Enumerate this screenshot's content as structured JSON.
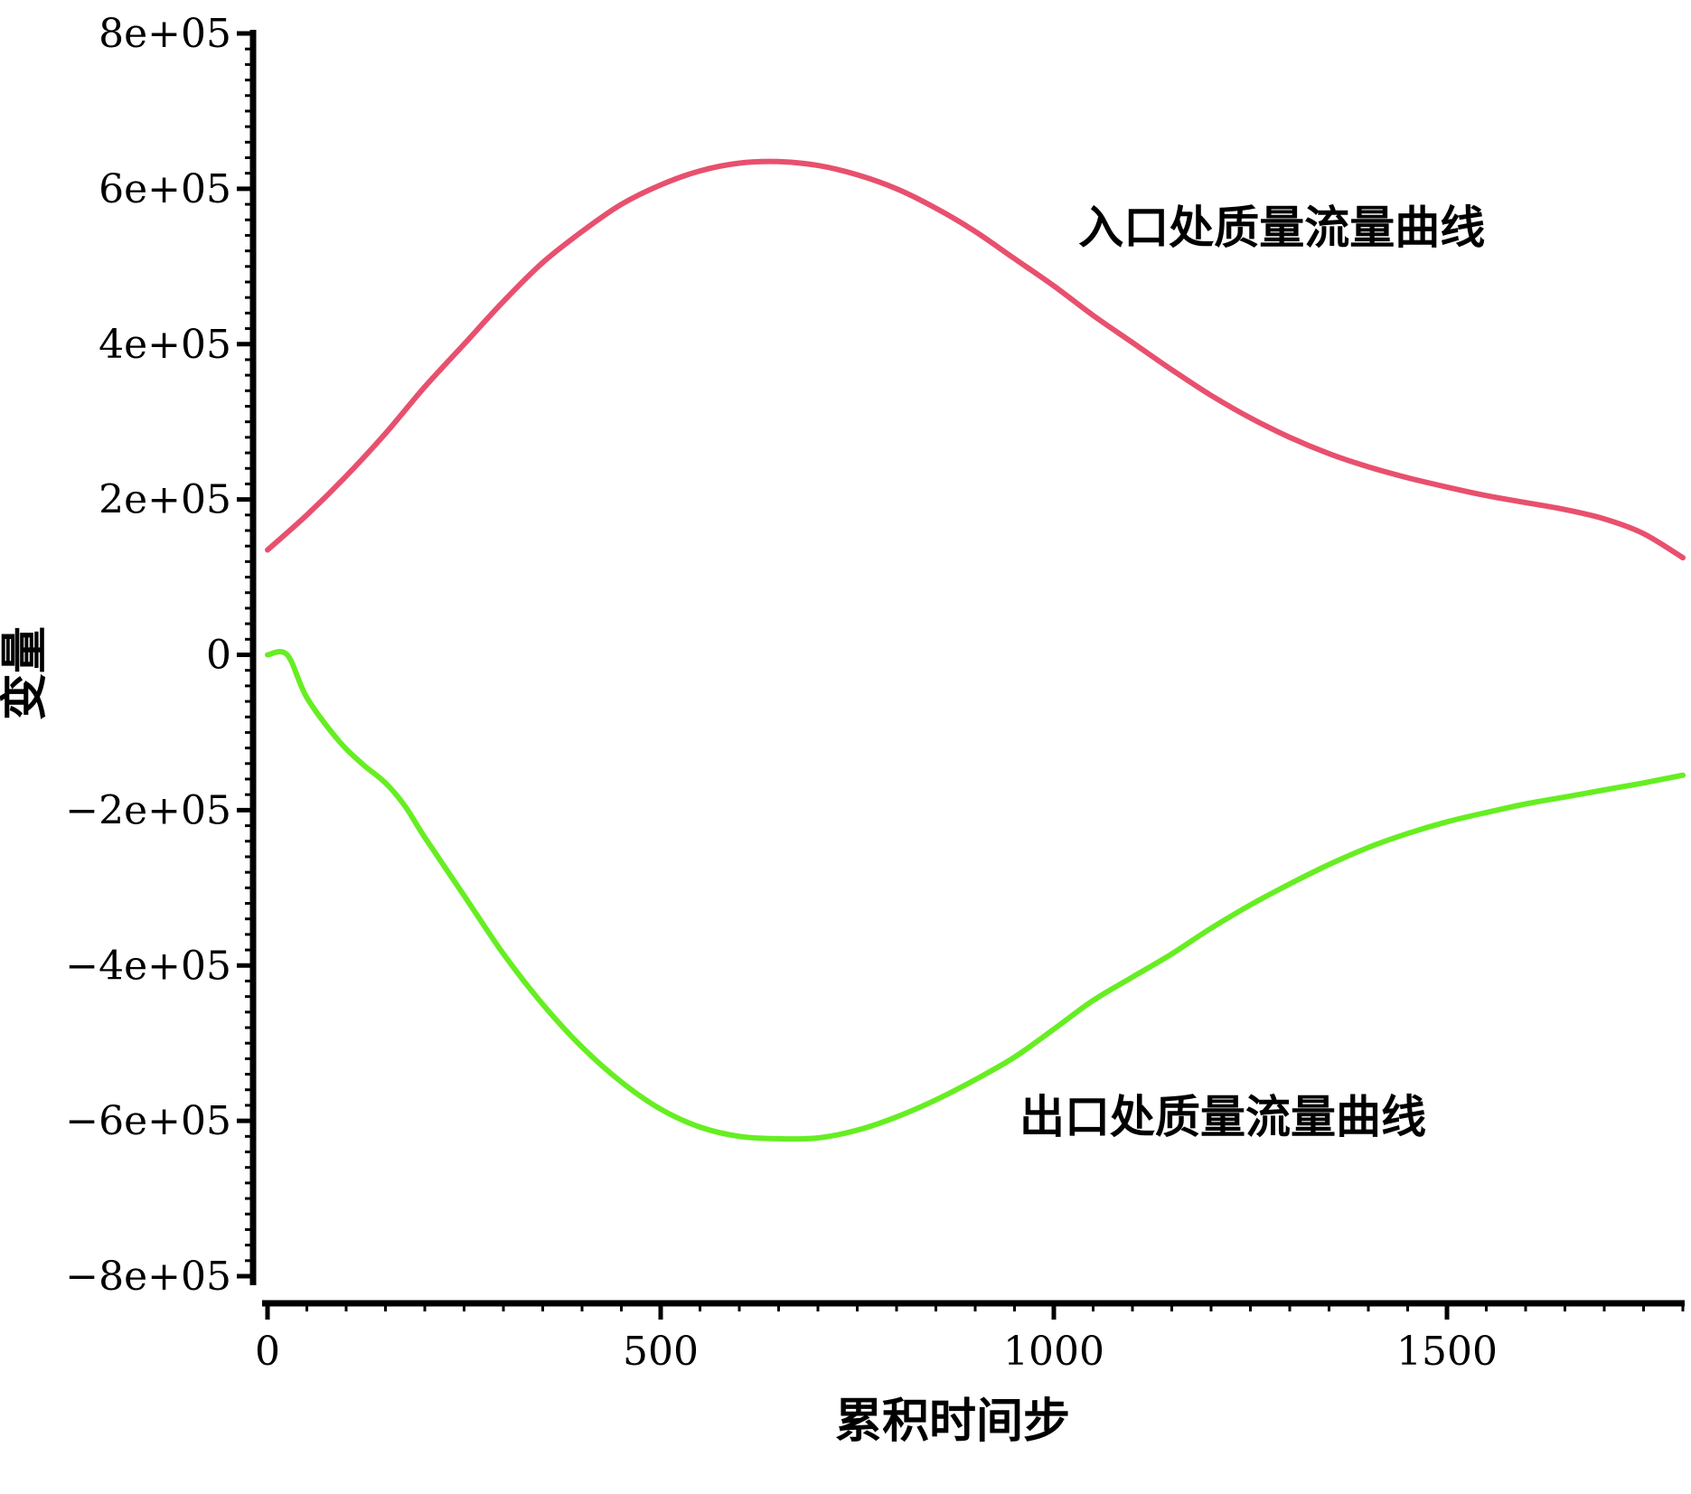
{
  "chart_data": {
    "type": "line",
    "xlabel": "累积时间步",
    "ylabel": "变量",
    "xlim": [
      0,
      1800
    ],
    "ylim": [
      -800000,
      800000
    ],
    "x_ticks": [
      0,
      500,
      1000,
      1500
    ],
    "x_tick_labels": [
      "0",
      "500",
      "1000",
      "1500"
    ],
    "y_ticks": [
      800000,
      600000,
      400000,
      200000,
      0,
      -200000,
      -400000,
      -600000,
      -800000
    ],
    "y_tick_labels": [
      "8e+05",
      "6e+05",
      "4e+05",
      "2e+05",
      "0",
      "−2e+05",
      "−4e+05",
      "−6e+05",
      "−8e+05"
    ],
    "grid": false,
    "series": [
      {
        "name": "入口处质量流量曲线",
        "color": "#e8506e",
        "x": [
          0,
          50,
          100,
          150,
          200,
          250,
          300,
          350,
          400,
          450,
          500,
          550,
          600,
          650,
          700,
          750,
          800,
          850,
          900,
          950,
          1000,
          1050,
          1100,
          1150,
          1200,
          1250,
          1300,
          1350,
          1400,
          1450,
          1500,
          1550,
          1600,
          1650,
          1700,
          1750,
          1800
        ],
        "values": [
          135000,
          180000,
          230000,
          285000,
          345000,
          400000,
          455000,
          505000,
          545000,
          580000,
          605000,
          623000,
          633000,
          635000,
          630000,
          618000,
          600000,
          575000,
          545000,
          510000,
          475000,
          437000,
          402000,
          367000,
          334000,
          305000,
          280000,
          259000,
          242000,
          228000,
          216000,
          205000,
          196000,
          187000,
          175000,
          156000,
          125000
        ],
        "label_x": 1290,
        "label_y": 530000
      },
      {
        "name": "出口处质量流量曲线",
        "color": "#66ee22",
        "x": [
          0,
          25,
          50,
          90,
          120,
          150,
          175,
          200,
          250,
          300,
          350,
          400,
          450,
          500,
          550,
          600,
          650,
          700,
          750,
          800,
          850,
          900,
          950,
          1000,
          1050,
          1100,
          1150,
          1200,
          1250,
          1300,
          1350,
          1400,
          1450,
          1500,
          1550,
          1600,
          1650,
          1700,
          1750,
          1800
        ],
        "values": [
          0,
          0,
          -55000,
          -110000,
          -140000,
          -165000,
          -195000,
          -235000,
          -310000,
          -385000,
          -450000,
          -505000,
          -550000,
          -585000,
          -608000,
          -620000,
          -623000,
          -622000,
          -612000,
          -595000,
          -573000,
          -547000,
          -518000,
          -482000,
          -445000,
          -415000,
          -385000,
          -352000,
          -322000,
          -295000,
          -270000,
          -248000,
          -230000,
          -215000,
          -203000,
          -192000,
          -183000,
          -174000,
          -165000,
          -155000
        ],
        "label_x": 1215,
        "label_y": -615000
      }
    ]
  }
}
